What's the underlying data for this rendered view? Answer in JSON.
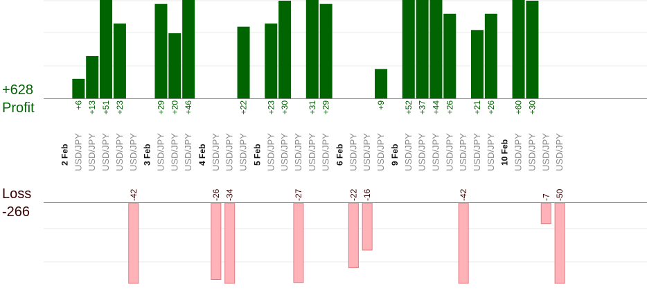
{
  "summary": {
    "profit_total": "+628",
    "profit_label": "Profit",
    "loss_label": "Loss",
    "loss_total": "-266"
  },
  "colors": {
    "profit_bar": "#006400",
    "profit_text": "#006400",
    "loss_bar": "#ffb3b8",
    "loss_border": "#e07a82",
    "loss_text": "#3a0000",
    "grid": "#e8e8e8",
    "axis": "#888888",
    "symbol_text": "#888888",
    "date_text": "#111111"
  },
  "chart_data": {
    "type": "bar",
    "title": "",
    "xlabel": "",
    "ylabel": "",
    "series": [
      {
        "name": "Profit"
      },
      {
        "name": "Loss"
      }
    ],
    "groups": [
      {
        "date": "2 Feb",
        "trades": [
          {
            "symbol": "USD/JPY",
            "value": 6,
            "label": "+6"
          },
          {
            "symbol": "USD/JPY",
            "value": 13,
            "label": "+13"
          },
          {
            "symbol": "USD/JPY",
            "value": 51,
            "label": "+51"
          },
          {
            "symbol": "USD/JPY",
            "value": 23,
            "label": "+23"
          },
          {
            "symbol": "USD/JPY",
            "value": -42,
            "label": "-42"
          }
        ]
      },
      {
        "date": "3 Feb",
        "trades": [
          {
            "symbol": "USD/JPY",
            "value": 29,
            "label": "+29"
          },
          {
            "symbol": "USD/JPY",
            "value": 20,
            "label": "+20"
          },
          {
            "symbol": "USD/JPY",
            "value": 46,
            "label": "+46"
          }
        ]
      },
      {
        "date": "4 Feb",
        "trades": [
          {
            "symbol": "USD/JPY",
            "value": -26,
            "label": "-26"
          },
          {
            "symbol": "USD/JPY",
            "value": -34,
            "label": "-34"
          },
          {
            "symbol": "USD/JPY",
            "value": 22,
            "label": "+22"
          }
        ]
      },
      {
        "date": "5 Feb",
        "trades": [
          {
            "symbol": "USD/JPY",
            "value": 23,
            "label": "+23"
          },
          {
            "symbol": "USD/JPY",
            "value": 30,
            "label": "+30"
          },
          {
            "symbol": "USD/JPY",
            "value": -27,
            "label": "-27"
          },
          {
            "symbol": "USD/JPY",
            "value": 31,
            "label": "+31"
          },
          {
            "symbol": "USD/JPY",
            "value": 29,
            "label": "+29"
          }
        ]
      },
      {
        "date": "6 Feb",
        "trades": [
          {
            "symbol": "USD/JPY",
            "value": -22,
            "label": "-22"
          },
          {
            "symbol": "USD/JPY",
            "value": -16,
            "label": "-16"
          },
          {
            "symbol": "USD/JPY",
            "value": 9,
            "label": "+9"
          }
        ]
      },
      {
        "date": "9 Feb",
        "trades": [
          {
            "symbol": "USD/JPY",
            "value": 52,
            "label": "+52"
          },
          {
            "symbol": "USD/JPY",
            "value": 37,
            "label": "+37"
          },
          {
            "symbol": "USD/JPY",
            "value": 44,
            "label": "+44"
          },
          {
            "symbol": "USD/JPY",
            "value": 26,
            "label": "+26"
          },
          {
            "symbol": "USD/JPY",
            "value": -42,
            "label": "-42"
          },
          {
            "symbol": "USD/JPY",
            "value": 21,
            "label": "+21"
          },
          {
            "symbol": "USD/JPY",
            "value": 26,
            "label": "+26"
          }
        ]
      },
      {
        "date": "10 Feb",
        "trades": [
          {
            "symbol": "USD/JPY",
            "value": 60,
            "label": "+60"
          },
          {
            "symbol": "USD/JPY",
            "value": 30,
            "label": "+30"
          },
          {
            "symbol": "USD/JPY",
            "value": -7,
            "label": "-7"
          },
          {
            "symbol": "USD/JPY",
            "value": -50,
            "label": "-50"
          }
        ]
      }
    ],
    "profit_ylim": [
      0,
      30
    ],
    "loss_ylim": [
      0,
      27
    ],
    "grid": true,
    "legend": "left"
  }
}
